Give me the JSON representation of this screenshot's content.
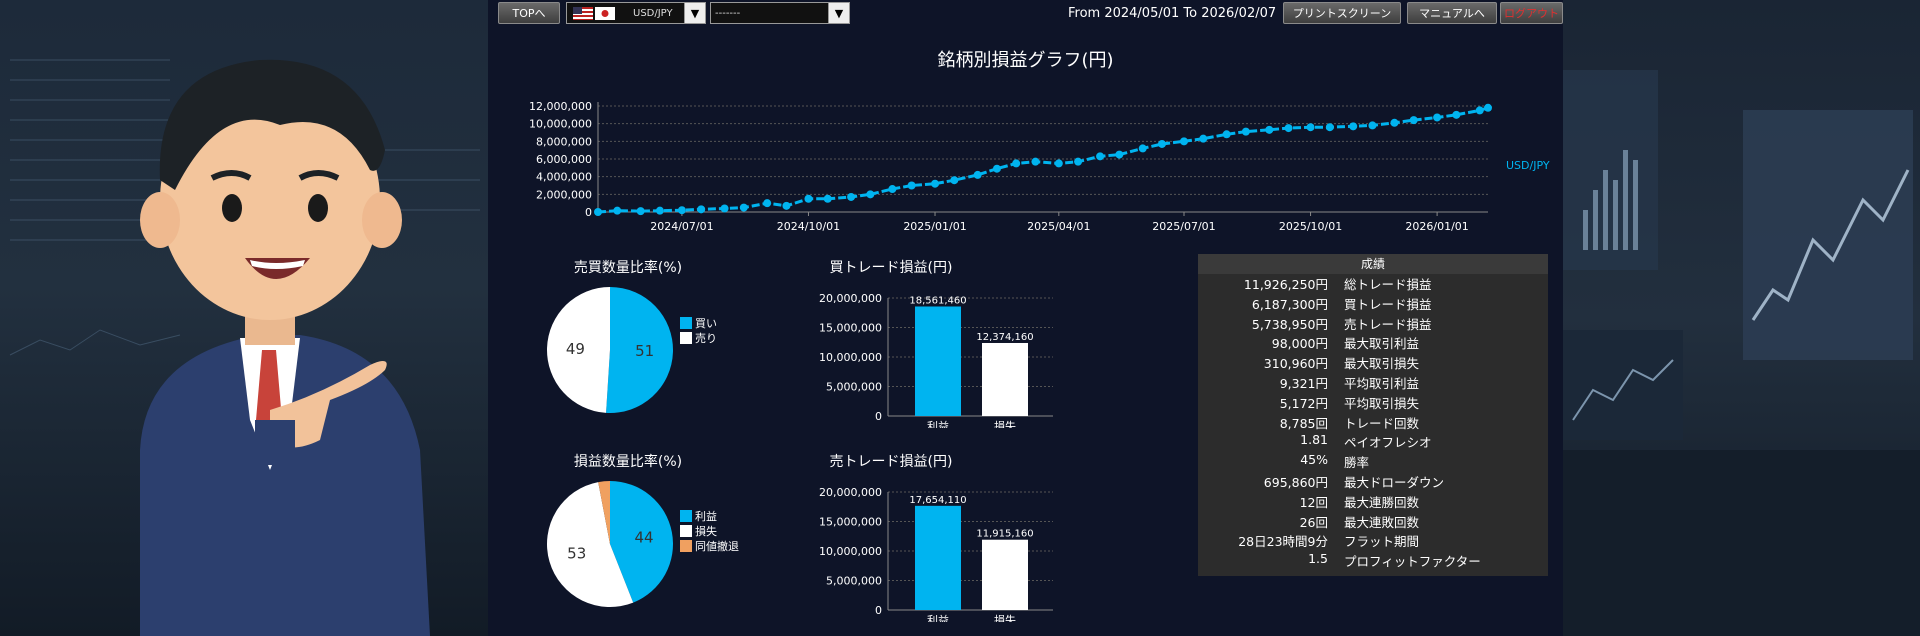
{
  "toolbar": {
    "top_label": "TOPへ",
    "symbol_select": "USD/JPY",
    "filter_select": "-------",
    "date_range": "From 2024/05/01 To 2026/02/07",
    "print_label": "プリントスクリーン",
    "manual_label": "マニュアルへ",
    "logout_label": "ログアウト"
  },
  "main_chart": {
    "title": "銘柄別損益グラフ(円)",
    "series_name": "USD/JPY",
    "color": "#00b4f0",
    "yticks": [
      "12,000,000",
      "10,000,000",
      "8,000,000",
      "6,000,000",
      "4,000,000",
      "2,000,000",
      "0"
    ],
    "xticks": [
      "2024/07/01",
      "2024/10/01",
      "2025/01/01",
      "2025/04/01",
      "2025/07/01",
      "2025/10/01",
      "2026/01/01"
    ]
  },
  "chart_data": [
    {
      "type": "line",
      "title": "銘柄別損益グラフ(円)",
      "x_range": [
        "2024/05/01",
        "2026/02/07"
      ],
      "ylim": [
        0,
        12000000
      ],
      "grid": true,
      "legend": "right",
      "series": [
        {
          "name": "USD/JPY",
          "x": [
            "2024/05/01",
            "2024/05/15",
            "2024/06/01",
            "2024/06/15",
            "2024/07/01",
            "2024/07/15",
            "2024/08/01",
            "2024/08/15",
            "2024/09/01",
            "2024/09/15",
            "2024/10/01",
            "2024/10/15",
            "2024/11/01",
            "2024/11/15",
            "2024/12/01",
            "2024/12/15",
            "2025/01/01",
            "2025/01/15",
            "2025/02/01",
            "2025/02/15",
            "2025/03/01",
            "2025/03/15",
            "2025/04/01",
            "2025/04/15",
            "2025/05/01",
            "2025/05/15",
            "2025/06/01",
            "2025/06/15",
            "2025/07/01",
            "2025/07/15",
            "2025/08/01",
            "2025/08/15",
            "2025/09/01",
            "2025/09/15",
            "2025/10/01",
            "2025/10/15",
            "2025/11/01",
            "2025/11/15",
            "2025/12/01",
            "2025/12/15",
            "2026/01/01",
            "2026/01/15",
            "2026/02/01",
            "2026/02/07"
          ],
          "y": [
            0,
            150000,
            100000,
            150000,
            200000,
            300000,
            400000,
            500000,
            1000000,
            700000,
            1500000,
            1500000,
            1700000,
            2000000,
            2600000,
            3000000,
            3200000,
            3600000,
            4200000,
            4900000,
            5500000,
            5700000,
            5500000,
            5700000,
            6300000,
            6500000,
            7200000,
            7700000,
            8000000,
            8300000,
            8800000,
            9100000,
            9300000,
            9500000,
            9600000,
            9600000,
            9700000,
            9800000,
            10100000,
            10400000,
            10700000,
            11000000,
            11500000,
            11800000
          ]
        }
      ]
    },
    {
      "type": "pie",
      "title": "売買数量比率(%)",
      "labels": [
        "買い",
        "売り"
      ],
      "values": [
        51,
        49
      ],
      "colors": [
        "#00b4f0",
        "#ffffff"
      ],
      "legend": "right"
    },
    {
      "type": "pie",
      "title": "損益数量比率(%)",
      "labels": [
        "利益",
        "損失",
        "同値撤退"
      ],
      "values": [
        44,
        53,
        3
      ],
      "colors": [
        "#00b4f0",
        "#ffffff",
        "#f0a060"
      ],
      "legend": "right"
    },
    {
      "type": "bar",
      "title": "買トレード損益(円)",
      "categories": [
        "利益",
        "損失"
      ],
      "values": [
        18561460,
        12374160
      ],
      "value_labels": [
        "18,561,460",
        "12,374,160"
      ],
      "colors": [
        "#00b4f0",
        "#ffffff"
      ],
      "ylim": [
        0,
        20000000
      ],
      "yticks": [
        "20,000,000",
        "15,000,000",
        "10,000,000",
        "5,000,000",
        "0"
      ]
    },
    {
      "type": "bar",
      "title": "売トレード損益(円)",
      "categories": [
        "利益",
        "損失"
      ],
      "values": [
        17654110,
        11915160
      ],
      "value_labels": [
        "17,654,110",
        "11,915,160"
      ],
      "colors": [
        "#00b4f0",
        "#ffffff"
      ],
      "ylim": [
        0,
        20000000
      ],
      "yticks": [
        "20,000,000",
        "15,000,000",
        "10,000,000",
        "5,000,000",
        "0"
      ]
    }
  ],
  "results": {
    "header": "成績",
    "rows": [
      {
        "value": "11,926,250円",
        "label": "総トレード損益"
      },
      {
        "value": "6,187,300円",
        "label": "買トレード損益"
      },
      {
        "value": "5,738,950円",
        "label": "売トレード損益"
      },
      {
        "value": "98,000円",
        "label": "最大取引利益"
      },
      {
        "value": "310,960円",
        "label": "最大取引損失"
      },
      {
        "value": "9,321円",
        "label": "平均取引利益"
      },
      {
        "value": "5,172円",
        "label": "平均取引損失"
      },
      {
        "value": "8,785回",
        "label": "トレード回数"
      },
      {
        "value": "1.81",
        "label": "ペイオフレシオ"
      },
      {
        "value": "45%",
        "label": "勝率"
      },
      {
        "value": "695,860円",
        "label": "最大ドローダウン"
      },
      {
        "value": "12回",
        "label": "最大連勝回数"
      },
      {
        "value": "26回",
        "label": "最大連敗回数"
      },
      {
        "value": "28日23時間9分",
        "label": "フラット期間"
      },
      {
        "value": "1.5",
        "label": "プロフィットファクター"
      }
    ]
  }
}
